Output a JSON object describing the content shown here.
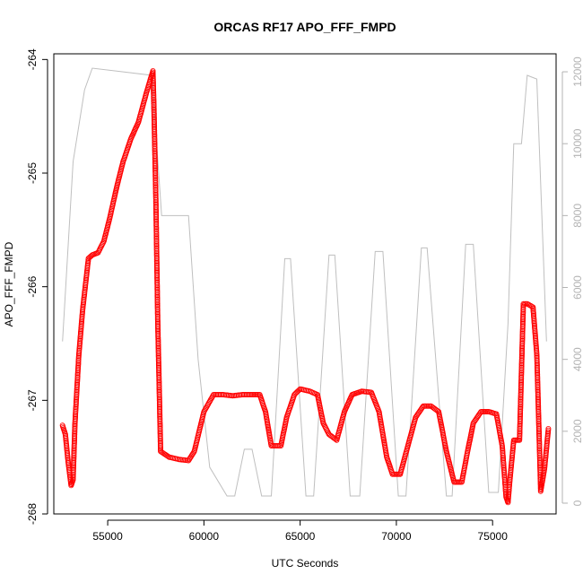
{
  "chart_data": {
    "type": "scatter",
    "title": "ORCAS RF17 APO_FFF_FMPD",
    "xlabel": "UTC Seconds",
    "ylabel": "APO_FFF_FMPD",
    "xlim": [
      52200,
      78300
    ],
    "ylim": [
      -268,
      -263.95
    ],
    "y2lim": [
      -300,
      12500
    ],
    "x_ticks": [
      55000,
      60000,
      65000,
      70000,
      75000
    ],
    "x_tick_labels": [
      "55000",
      "60000",
      "65000",
      "70000",
      "75000"
    ],
    "y_ticks": [
      -268,
      -267,
      -266,
      -265,
      -264
    ],
    "y_tick_labels": [
      "-268",
      "-267",
      "-266",
      "-265",
      "-264"
    ],
    "y2_ticks": [
      0,
      2000,
      4000,
      6000,
      8000,
      10000,
      12000
    ],
    "y2_tick_labels": [
      "0",
      "2000",
      "4000",
      "6000",
      "8000",
      "10000",
      "12000"
    ],
    "grid": false,
    "series": [
      {
        "color": "#ff0000",
        "marker": "open-circle",
        "points": [
          [
            52650,
            -267.22
          ],
          [
            52800,
            -267.3
          ],
          [
            52950,
            -267.55
          ],
          [
            53100,
            -267.75
          ],
          [
            53200,
            -267.7
          ],
          [
            53300,
            -267.2
          ],
          [
            53400,
            -266.9
          ],
          [
            53500,
            -266.6
          ],
          [
            53700,
            -266.2
          ],
          [
            54000,
            -265.75
          ],
          [
            54200,
            -265.72
          ],
          [
            54500,
            -265.7
          ],
          [
            54800,
            -265.6
          ],
          [
            55100,
            -265.4
          ],
          [
            55500,
            -265.1
          ],
          [
            55800,
            -264.9
          ],
          [
            56200,
            -264.7
          ],
          [
            56600,
            -264.55
          ],
          [
            57000,
            -264.3
          ],
          [
            57350,
            -264.1
          ],
          [
            57400,
            -264.4
          ],
          [
            57500,
            -265.2
          ],
          [
            57600,
            -266.3
          ],
          [
            57750,
            -267.45
          ],
          [
            58200,
            -267.5
          ],
          [
            58700,
            -267.52
          ],
          [
            59200,
            -267.53
          ],
          [
            59500,
            -267.45
          ],
          [
            60000,
            -267.1
          ],
          [
            60500,
            -266.95
          ],
          [
            61000,
            -266.95
          ],
          [
            61500,
            -266.96
          ],
          [
            62000,
            -266.95
          ],
          [
            62500,
            -266.95
          ],
          [
            62900,
            -266.95
          ],
          [
            63200,
            -267.1
          ],
          [
            63500,
            -267.4
          ],
          [
            64000,
            -267.4
          ],
          [
            64300,
            -267.15
          ],
          [
            64700,
            -266.95
          ],
          [
            65000,
            -266.9
          ],
          [
            65500,
            -266.92
          ],
          [
            65900,
            -266.95
          ],
          [
            66200,
            -267.2
          ],
          [
            66500,
            -267.3
          ],
          [
            66900,
            -267.35
          ],
          [
            67300,
            -267.1
          ],
          [
            67700,
            -266.95
          ],
          [
            68200,
            -266.92
          ],
          [
            68700,
            -266.93
          ],
          [
            69100,
            -267.1
          ],
          [
            69500,
            -267.5
          ],
          [
            69800,
            -267.65
          ],
          [
            70200,
            -267.65
          ],
          [
            70600,
            -267.4
          ],
          [
            71000,
            -267.15
          ],
          [
            71400,
            -267.05
          ],
          [
            71800,
            -267.05
          ],
          [
            72200,
            -267.1
          ],
          [
            72600,
            -267.45
          ],
          [
            73000,
            -267.72
          ],
          [
            73400,
            -267.72
          ],
          [
            73700,
            -267.45
          ],
          [
            74000,
            -267.2
          ],
          [
            74400,
            -267.1
          ],
          [
            74800,
            -267.1
          ],
          [
            75200,
            -267.12
          ],
          [
            75500,
            -267.4
          ],
          [
            75700,
            -267.85
          ],
          [
            75800,
            -267.9
          ],
          [
            75900,
            -267.7
          ],
          [
            76100,
            -267.35
          ],
          [
            76400,
            -267.35
          ],
          [
            76600,
            -266.15
          ],
          [
            76800,
            -266.15
          ],
          [
            77100,
            -266.18
          ],
          [
            77300,
            -266.6
          ],
          [
            77500,
            -267.8
          ],
          [
            77700,
            -267.6
          ],
          [
            77900,
            -267.25
          ]
        ]
      },
      {
        "color": "#bfbfbf",
        "marker": "line",
        "axis": "right",
        "points": [
          [
            52650,
            4500
          ],
          [
            53200,
            9500
          ],
          [
            53800,
            11500
          ],
          [
            54200,
            12100
          ],
          [
            57300,
            11900
          ],
          [
            57800,
            8000
          ],
          [
            59200,
            8000
          ],
          [
            59700,
            4000
          ],
          [
            60300,
            1000
          ],
          [
            61200,
            200
          ],
          [
            61600,
            200
          ],
          [
            62100,
            1500
          ],
          [
            62500,
            1500
          ],
          [
            63000,
            200
          ],
          [
            63500,
            200
          ],
          [
            64200,
            6800
          ],
          [
            64500,
            6800
          ],
          [
            65300,
            200
          ],
          [
            65700,
            200
          ],
          [
            66500,
            6900
          ],
          [
            66800,
            6900
          ],
          [
            67600,
            200
          ],
          [
            68100,
            200
          ],
          [
            68900,
            7000
          ],
          [
            69300,
            7000
          ],
          [
            70100,
            200
          ],
          [
            70500,
            200
          ],
          [
            71300,
            7100
          ],
          [
            71600,
            7100
          ],
          [
            72600,
            200
          ],
          [
            72900,
            200
          ],
          [
            73600,
            7200
          ],
          [
            74000,
            7200
          ],
          [
            74800,
            300
          ],
          [
            75300,
            300
          ],
          [
            75800,
            5000
          ],
          [
            76100,
            10000
          ],
          [
            76500,
            10000
          ],
          [
            76800,
            11900
          ],
          [
            77300,
            11800
          ],
          [
            77800,
            4500
          ]
        ]
      }
    ]
  }
}
